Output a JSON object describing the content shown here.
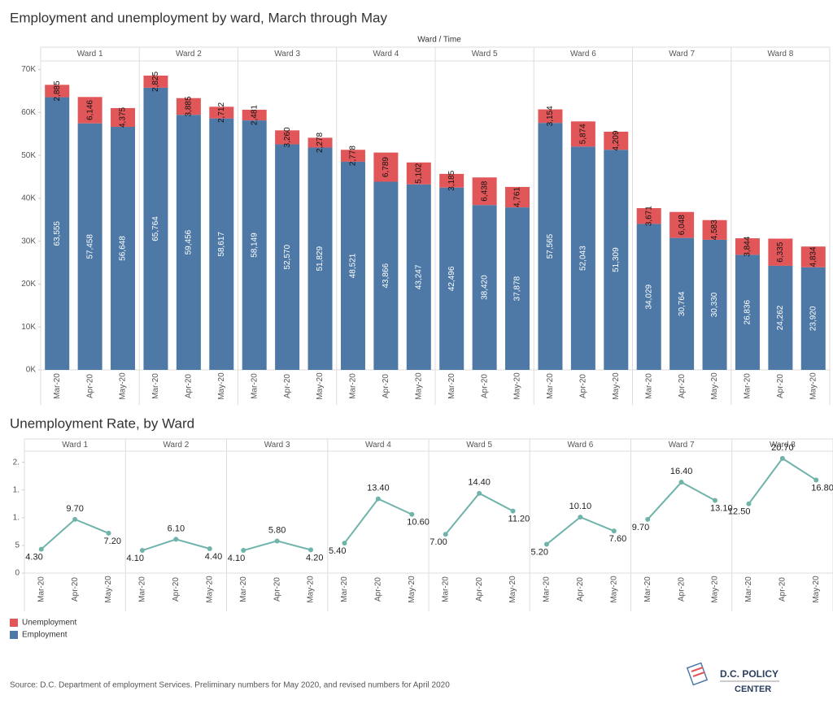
{
  "chart_data": [
    {
      "type": "bar",
      "stacked": true,
      "title": "Employment and unemployment by ward, March through May",
      "column_header": "Ward / Time",
      "groups": [
        "Ward 1",
        "Ward 2",
        "Ward 3",
        "Ward 4",
        "Ward 5",
        "Ward 6",
        "Ward 7",
        "Ward 8"
      ],
      "categories": [
        "Mar-20",
        "Apr-20",
        "May-20",
        "Mar-20",
        "Apr-20",
        "May-20",
        "Mar-20",
        "Apr-20",
        "May-20",
        "Mar-20",
        "Apr-20",
        "May-20",
        "Mar-20",
        "Apr-20",
        "May-20",
        "Mar-20",
        "Apr-20",
        "May-20",
        "Mar-20",
        "Apr-20",
        "May-20",
        "Mar-20",
        "Apr-20",
        "May-20"
      ],
      "series": [
        {
          "name": "Employment",
          "color": "#4e79a7",
          "values": [
            63555,
            57458,
            56648,
            65764,
            59456,
            58617,
            58149,
            52570,
            51829,
            48521,
            43866,
            43247,
            42496,
            38420,
            37878,
            57565,
            52043,
            51309,
            34029,
            30764,
            30330,
            26836,
            24262,
            23920
          ],
          "value_labels": [
            "63,555",
            "57,458",
            "56,648",
            "65,764",
            "59,456",
            "58,617",
            "58,149",
            "52,570",
            "51,829",
            "48,521",
            "43,866",
            "43,247",
            "42,496",
            "38,420",
            "37,878",
            "57,565",
            "52,043",
            "51,309",
            "34,029",
            "30,764",
            "30,330",
            "26,836",
            "24,262",
            "23,920"
          ]
        },
        {
          "name": "Unemployment",
          "color": "#e15759",
          "values": [
            2885,
            6146,
            4375,
            2825,
            3885,
            2712,
            2481,
            3260,
            2278,
            2778,
            6789,
            5102,
            3185,
            6438,
            4761,
            3154,
            5874,
            4209,
            3671,
            6048,
            4583,
            3844,
            6335,
            4834
          ],
          "value_labels": [
            "2,885",
            "6,146",
            "4,375",
            "2,825",
            "3,885",
            "2,712",
            "2,481",
            "3,260",
            "2,278",
            "2,778",
            "6,789",
            "5,102",
            "3,185",
            "6,438",
            "4,761",
            "3,154",
            "5,874",
            "4,209",
            "3,671",
            "6,048",
            "4,583",
            "3,844",
            "6,335",
            "4,834"
          ]
        }
      ],
      "ylim": [
        0,
        72000
      ],
      "yticks": [
        {
          "value": 0,
          "label": "0K"
        },
        {
          "value": 10000,
          "label": "10K"
        },
        {
          "value": 20000,
          "label": "20K"
        },
        {
          "value": 30000,
          "label": "30K"
        },
        {
          "value": 40000,
          "label": "40K"
        },
        {
          "value": 50000,
          "label": "50K"
        },
        {
          "value": 60000,
          "label": "60K"
        },
        {
          "value": 70000,
          "label": "70K"
        }
      ],
      "grid": false
    },
    {
      "type": "line",
      "title": "Unemployment Rate, by Ward",
      "groups": [
        "Ward 1",
        "Ward 2",
        "Ward 3",
        "Ward 4",
        "Ward 5",
        "Ward 6",
        "Ward 7",
        "Ward 8"
      ],
      "categories": [
        "Mar-20",
        "Apr-20",
        "May-20",
        "Mar-20",
        "Apr-20",
        "May-20",
        "Mar-20",
        "Apr-20",
        "May-20",
        "Mar-20",
        "Apr-20",
        "May-20",
        "Mar-20",
        "Apr-20",
        "May-20",
        "Mar-20",
        "Apr-20",
        "May-20",
        "Mar-20",
        "Apr-20",
        "May-20",
        "Mar-20",
        "Apr-20",
        "May-20"
      ],
      "color": "#6fb3ab",
      "values": [
        4.3,
        9.7,
        7.2,
        4.1,
        6.1,
        4.4,
        4.1,
        5.8,
        4.2,
        5.4,
        13.4,
        10.6,
        7.0,
        14.4,
        11.2,
        5.2,
        10.1,
        7.6,
        9.7,
        16.4,
        13.1,
        12.5,
        20.7,
        16.8
      ],
      "value_labels": [
        "4.30",
        "9.70",
        "7.20",
        "4.10",
        "6.10",
        "4.40",
        "4.10",
        "5.80",
        "4.20",
        "5.40",
        "13.40",
        "10.60",
        "7.00",
        "14.40",
        "11.20",
        "5.20",
        "10.10",
        "7.60",
        "9.70",
        "16.40",
        "13.10",
        "12.50",
        "20.70",
        "16.80"
      ],
      "ylim": [
        0,
        22
      ],
      "yticks": [
        0,
        5,
        {
          "value": 10,
          "label": "1."
        },
        {
          "value": 15,
          "label": "1."
        },
        {
          "value": 20,
          "label": "2."
        }
      ],
      "grid": false
    }
  ],
  "source": "Source: D.C. Department of employment Services. Preliminary numbers for May 2020, and revised numbers for April 2020",
  "logo": [
    "D.C. POLICY",
    "CENTER"
  ]
}
